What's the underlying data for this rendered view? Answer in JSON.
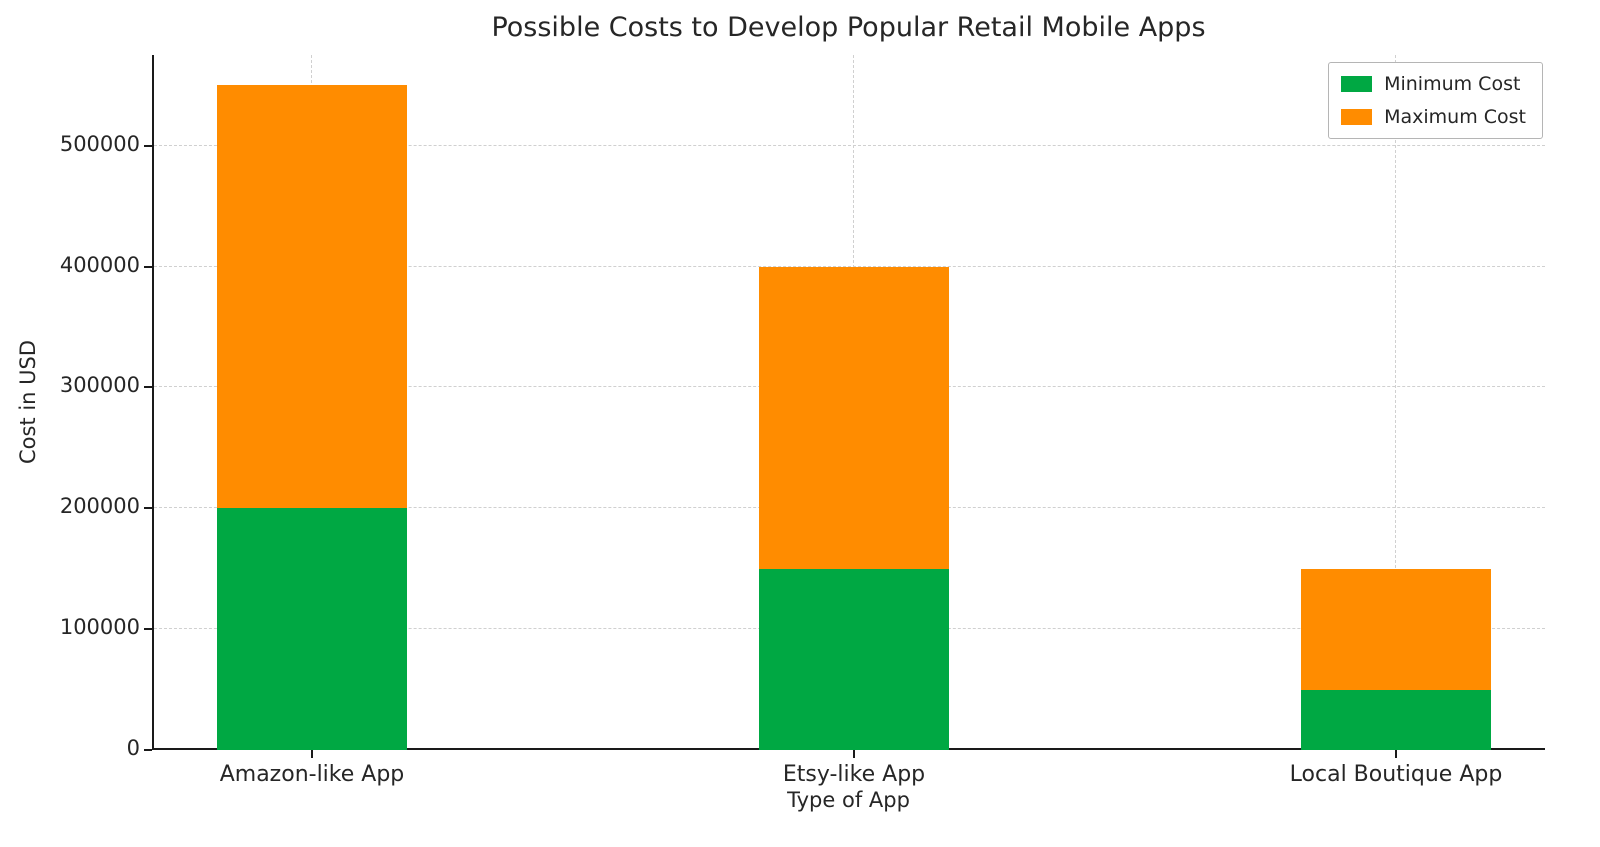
{
  "chart_data": {
    "type": "bar",
    "stacked": true,
    "title": "Possible Costs to Develop Popular Retail Mobile Apps",
    "xlabel": "Type of App",
    "ylabel": "Cost in USD",
    "categories": [
      "Amazon-like App",
      "Etsy-like App",
      "Local Boutique App"
    ],
    "series": [
      {
        "name": "Minimum Cost",
        "color": "#00a843",
        "values": [
          200000,
          150000,
          50000
        ]
      },
      {
        "name": "Maximum Cost",
        "color": "#ff8c00",
        "values": [
          350000,
          250000,
          100000
        ]
      }
    ],
    "stack_totals": [
      550000,
      400000,
      150000
    ],
    "ylim": [
      0,
      575000
    ],
    "yticks": [
      0,
      100000,
      200000,
      300000,
      400000,
      500000
    ],
    "grid": "dashed",
    "legend_position": "upper right"
  }
}
